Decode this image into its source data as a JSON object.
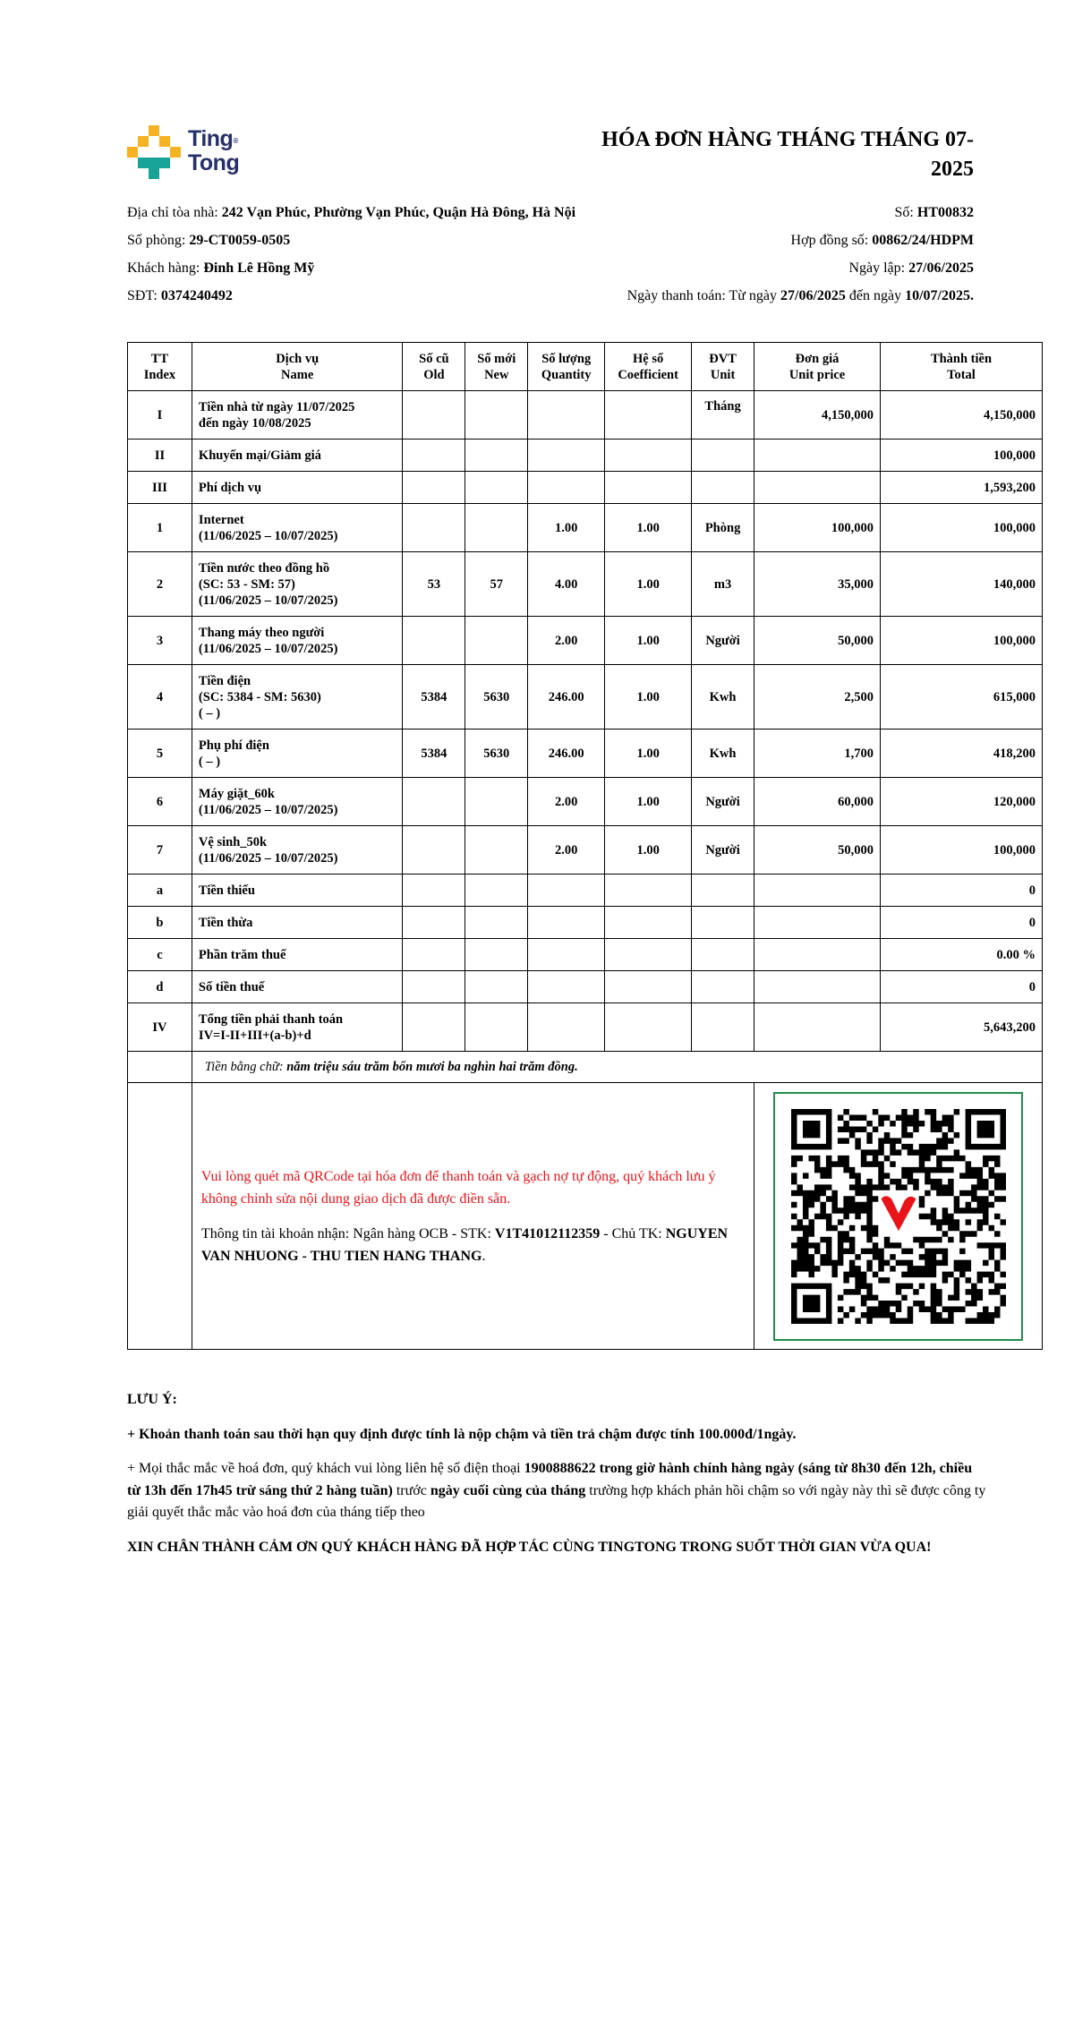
{
  "brand": {
    "logo_text_line1": "Ting",
    "logo_text_line2": "Tong",
    "registered": "®",
    "colors": {
      "yellow": "#f5b324",
      "teal": "#17a397",
      "navy": "#27306b"
    }
  },
  "title": "HÓA ĐƠN HÀNG THÁNG THÁNG 07-2025",
  "info_left": {
    "address_label": "Địa chỉ tòa nhà: ",
    "address": "242 Vạn Phúc, Phường Vạn Phúc, Quận Hà Đông, Hà Nội",
    "room_label": "Số phòng: ",
    "room": "29-CT0059-0505",
    "customer_label": "Khách hàng: ",
    "customer": "Đinh Lê Hồng Mỹ",
    "phone_label": "SĐT: ",
    "phone": "0374240492"
  },
  "info_right": {
    "number_label": "Số: ",
    "number": "HT00832",
    "contract_label": "Hợp đồng số: ",
    "contract": "00862/24/HDPM",
    "date_label": "Ngày lập: ",
    "date": "27/06/2025",
    "pay_label": "Ngày thanh toán: Từ ngày ",
    "pay_from": "27/06/2025",
    "pay_mid": " đến ngày ",
    "pay_to": "10/07/2025."
  },
  "table": {
    "headers": [
      [
        "TT",
        "Index"
      ],
      [
        "Dịch vụ",
        "Name"
      ],
      [
        "Số cũ",
        "Old"
      ],
      [
        "Số mới",
        "New"
      ],
      [
        "Số lượng",
        "Quantity"
      ],
      [
        "Hệ số",
        "Coefficient"
      ],
      [
        "ĐVT",
        "Unit"
      ],
      [
        "Đơn giá",
        "Unit price"
      ],
      [
        "Thành tiền",
        "Total"
      ]
    ],
    "rows": [
      {
        "index": "I",
        "name": [
          "Tiền nhà từ ngày 11/07/2025",
          "đến ngày 10/08/2025"
        ],
        "old": "",
        "new": "",
        "qty": "",
        "coef": "",
        "unit": "Tháng",
        "price": "4,150,000",
        "total": "4,150,000",
        "h": "h54"
      },
      {
        "index": "II",
        "name": [
          "Khuyến mại/Giảm giá"
        ],
        "old": "",
        "new": "",
        "qty": "",
        "coef": "",
        "unit": "",
        "price": "",
        "total": "100,000",
        "h": "h36"
      },
      {
        "index": "III",
        "name": [
          "Phí dịch vụ"
        ],
        "old": "",
        "new": "",
        "qty": "",
        "coef": "",
        "unit": "",
        "price": "",
        "total": "1,593,200",
        "h": "h36"
      },
      {
        "index": "1",
        "name": [
          "Internet",
          "(11/06/2025 – 10/07/2025)"
        ],
        "old": "",
        "new": "",
        "qty": "1.00",
        "coef": "1.00",
        "unit": "Phòng",
        "price": "100,000",
        "total": "100,000",
        "h": "h54"
      },
      {
        "index": "2",
        "name": [
          "Tiền nước theo đồng hồ",
          "(SC: 53 - SM: 57)",
          "(11/06/2025 – 10/07/2025)"
        ],
        "old": "53",
        "new": "57",
        "qty": "4.00",
        "coef": "1.00",
        "unit": "m3",
        "price": "35,000",
        "total": "140,000",
        "h": "h73"
      },
      {
        "index": "3",
        "name": [
          "Thang máy theo người",
          "(11/06/2025 – 10/07/2025)"
        ],
        "old": "",
        "new": "",
        "qty": "2.00",
        "coef": "1.00",
        "unit": "Người",
        "price": "50,000",
        "total": "100,000",
        "h": "h54"
      },
      {
        "index": "4",
        "name": [
          "Tiền điện",
          "(SC: 5384 - SM: 5630)",
          "( – )"
        ],
        "old": "5384",
        "new": "5630",
        "qty": "246.00",
        "coef": "1.00",
        "unit": "Kwh",
        "price": "2,500",
        "total": "615,000",
        "h": "h73"
      },
      {
        "index": "5",
        "name": [
          "Phụ phí điện",
          "( – )"
        ],
        "old": "5384",
        "new": "5630",
        "qty": "246.00",
        "coef": "1.00",
        "unit": "Kwh",
        "price": "1,700",
        "total": "418,200",
        "h": "h54"
      },
      {
        "index": "6",
        "name": [
          "Máy giặt_60k",
          "(11/06/2025 – 10/07/2025)"
        ],
        "old": "",
        "new": "",
        "qty": "2.00",
        "coef": "1.00",
        "unit": "Người",
        "price": "60,000",
        "total": "120,000",
        "h": "h54"
      },
      {
        "index": "7",
        "name": [
          "Vệ sinh_50k",
          "(11/06/2025 – 10/07/2025)"
        ],
        "old": "",
        "new": "",
        "qty": "2.00",
        "coef": "1.00",
        "unit": "Người",
        "price": "50,000",
        "total": "100,000",
        "h": "h54"
      },
      {
        "index": "a",
        "name": [
          "Tiền thiếu"
        ],
        "old": "",
        "new": "",
        "qty": "",
        "coef": "",
        "unit": "",
        "price": "",
        "total": "0",
        "h": "h36"
      },
      {
        "index": "b",
        "name": [
          "Tiền thừa"
        ],
        "old": "",
        "new": "",
        "qty": "",
        "coef": "",
        "unit": "",
        "price": "",
        "total": "0",
        "h": "h36"
      },
      {
        "index": "c",
        "name": [
          "Phần trăm thuế"
        ],
        "old": "",
        "new": "",
        "qty": "",
        "coef": "",
        "unit": "",
        "price": "",
        "total": "0.00 %",
        "h": "h36"
      },
      {
        "index": "d",
        "name": [
          "Số tiền thuế"
        ],
        "old": "",
        "new": "",
        "qty": "",
        "coef": "",
        "unit": "",
        "price": "",
        "total": "0",
        "h": "h36"
      },
      {
        "index": "IV",
        "name": [
          "Tổng tiền phải thanh toán",
          "IV=I-II+III+(a-b)+d"
        ],
        "old": "",
        "new": "",
        "qty": "",
        "coef": "",
        "unit": "",
        "price": "",
        "total": "5,643,200",
        "h": "h54"
      }
    ],
    "words_label": "Tiền bằng chữ: ",
    "words": "năm triệu sáu trăm bốn mươi ba nghìn hai trăm đồng."
  },
  "payment": {
    "qr_note": "Vui lòng quét mã QRCode tại hóa đơn để thanh toán và gạch nợ tự động, quý khách lưu ý không chỉnh sửa nội dung giao dịch đã được điền sẵn.",
    "account_label": "Thông tin tài khoản nhận: Ngân hàng OCB - STK: ",
    "account_number": "V1T41012112359",
    "holder_label": " - Chủ TK: ",
    "holder": "NGUYEN VAN NHUONG - THU TIEN HANG THANG",
    "holder_end": ".",
    "colors": {
      "note": "#e8141a",
      "qr_border": "#1f8f4c",
      "qr_heart": "#e8141a"
    }
  },
  "notes": {
    "heading": "LƯU Ý:",
    "late": "+ Khoản thanh toán sau thời hạn quy định được tính là nộp chậm và tiền trả chậm được tính 100.000đ/1ngày.",
    "contact_1": "+ Mọi thắc mắc về hoá đơn, quý khách vui lòng liên hệ số điện thoại ",
    "contact_bold_1": "1900888622 trong giờ hành chính hàng ngày (sáng từ 8h30 đến 12h, chiều từ 13h đến 17h45 trừ sáng thứ 2 hàng tuần)",
    "contact_2": " trước ",
    "contact_bold_2": "ngày cuối cùng của tháng",
    "contact_3": " trường hợp khách phản hồi chậm so với ngày này thì sẽ được công ty giải quyết thắc mắc vào hoá đơn của tháng tiếp theo",
    "thanks": "XIN CHÂN THÀNH CẢM ƠN QUÝ KHÁCH HÀNG ĐÃ HỢP TÁC CÙNG TINGTONG TRONG SUỐT THỜI GIAN VỪA QUA!"
  }
}
